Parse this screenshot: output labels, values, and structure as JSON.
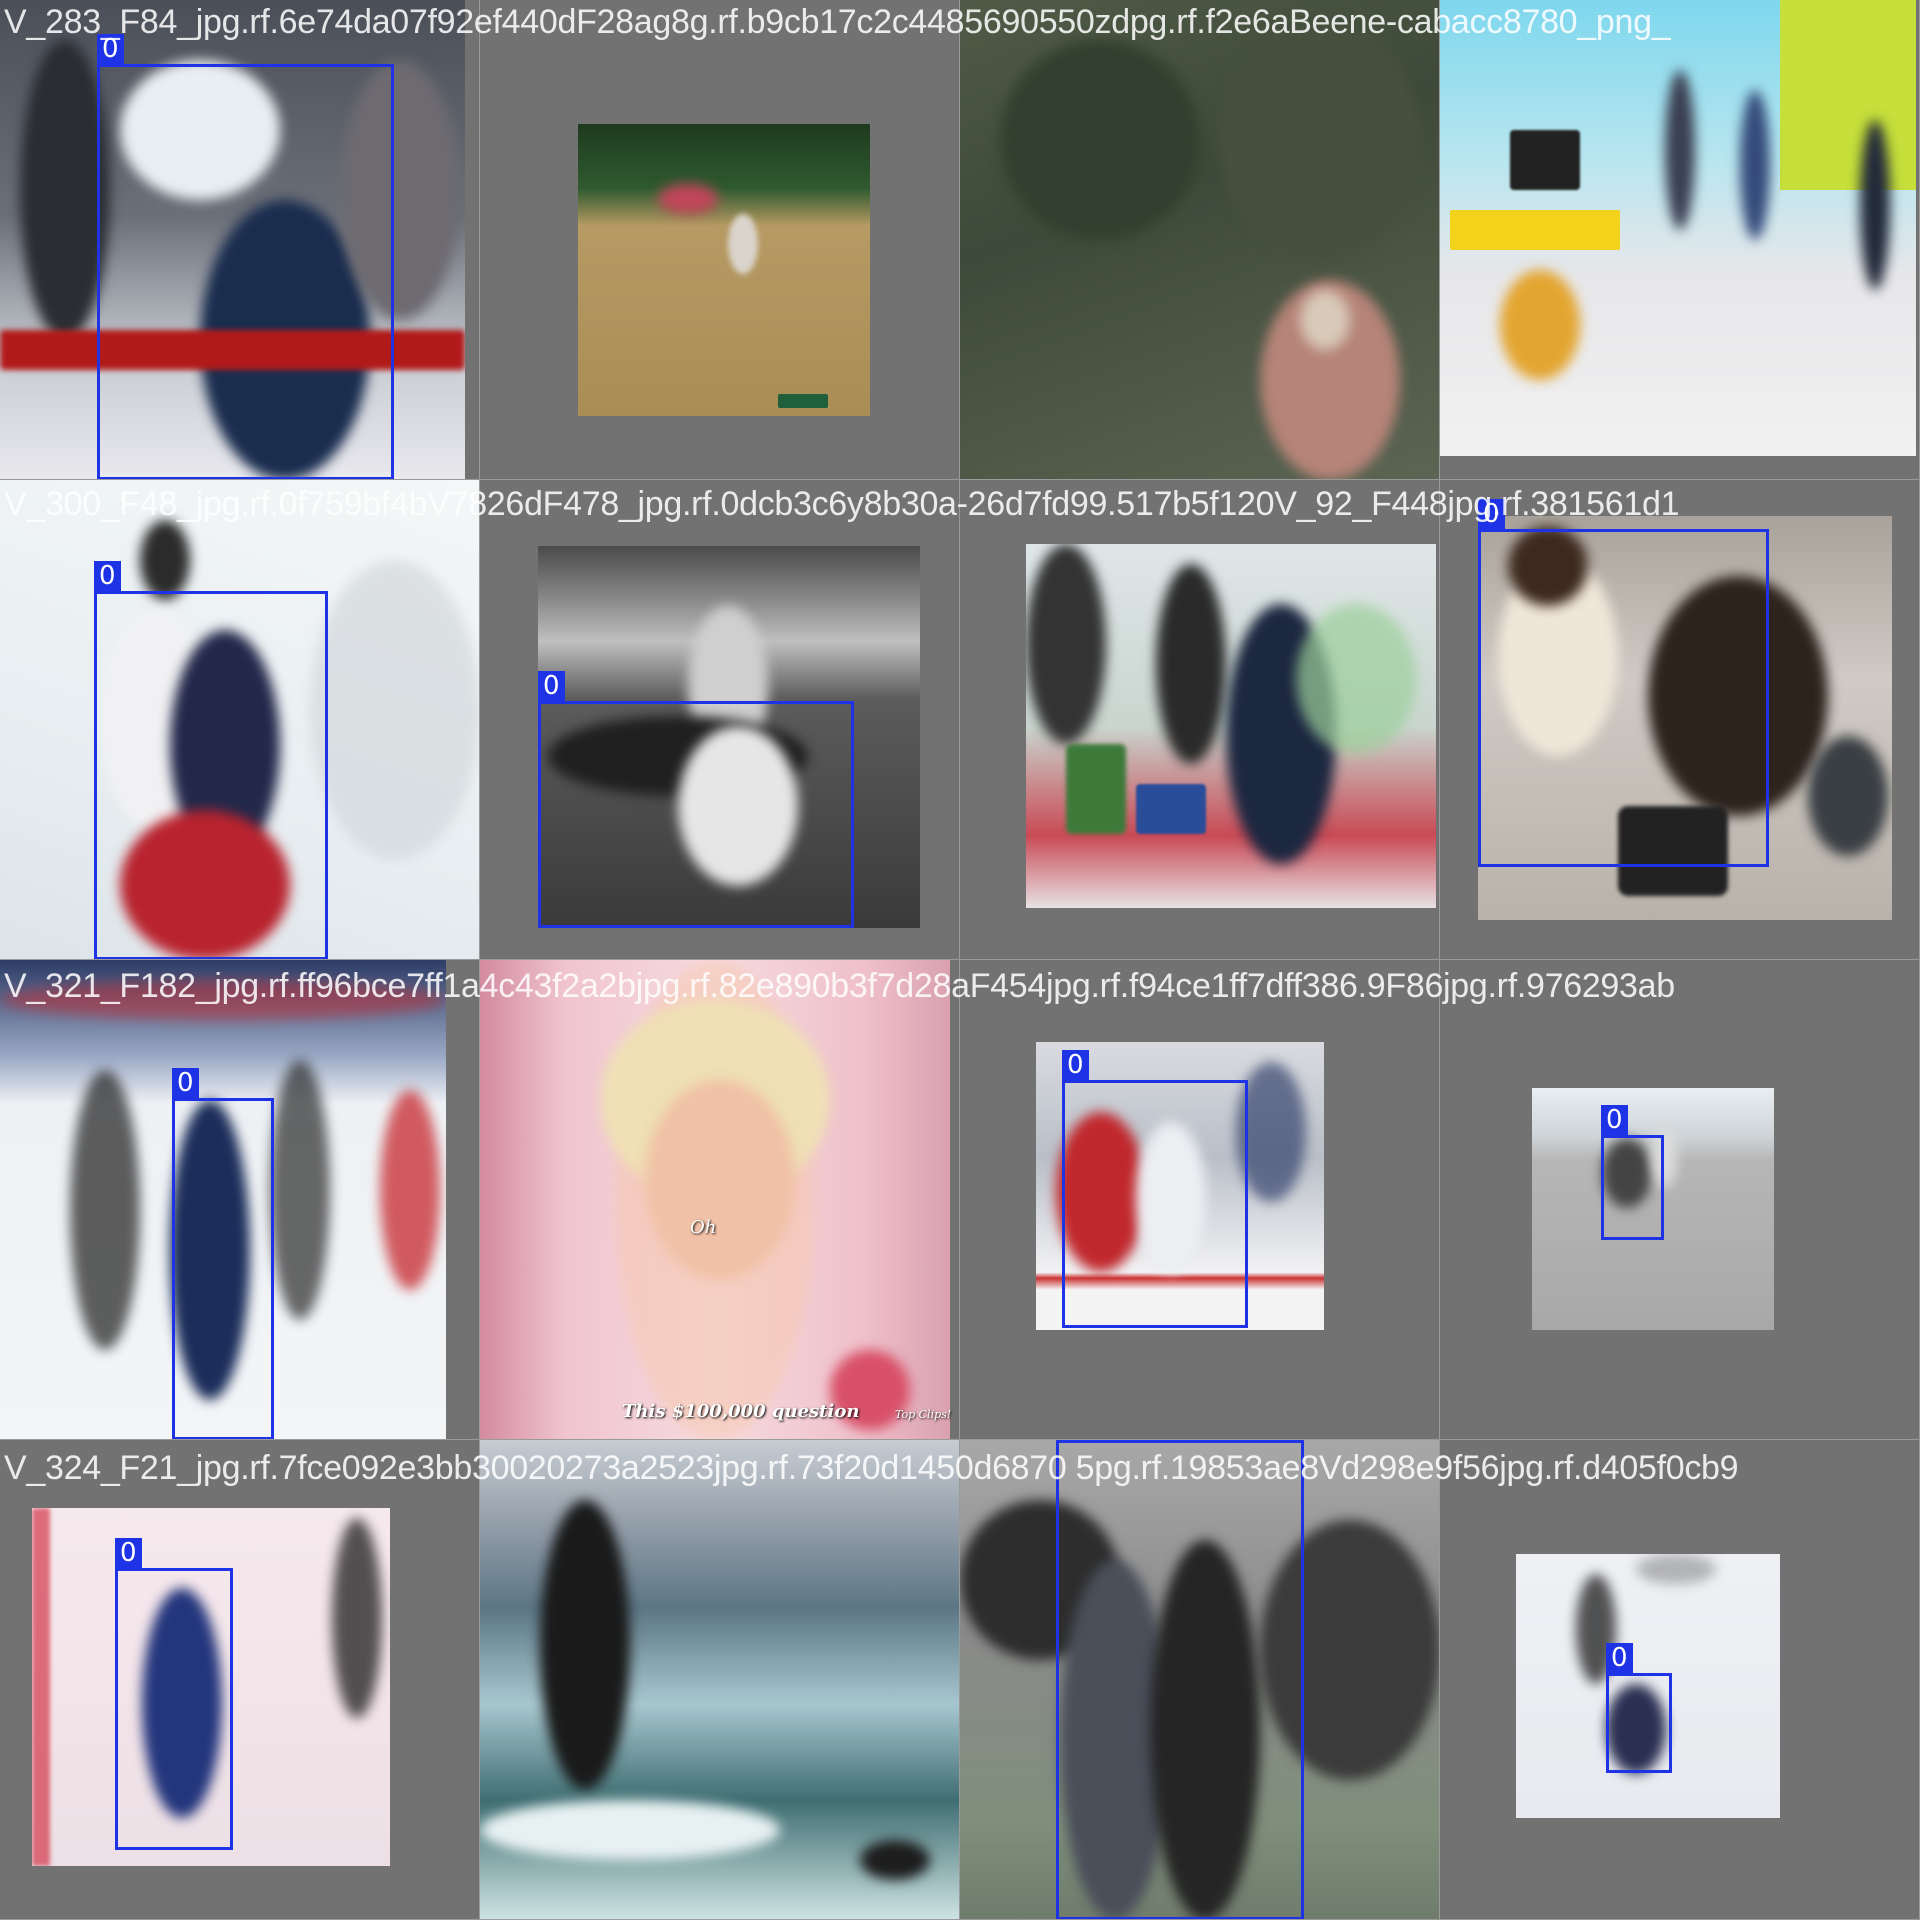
{
  "grid_title": "",
  "class_label": "0",
  "box_color": "#1f33e6",
  "tiles": [
    {
      "filename": "V_283_F84_jpg.rf.6e74da07f92ef440dF28ag8g.rf.b9cb17c2c4485690550zdpg.rf.f2e6aBeene-cabacc8780_png_",
      "has_detection": true
    },
    {
      "filename": "",
      "has_detection": false
    },
    {
      "filename": "",
      "has_detection": false
    },
    {
      "filename": "",
      "has_detection": false
    },
    {
      "filename": "V_300_F48_jpg.rf.0f759bf4bV7826dF478_jpg.rf.0dcb3c6y8b30a-26d7fd99.517b5f120V_92_F448jpg.rf.381561d1",
      "has_detection": true
    },
    {
      "filename": "",
      "has_detection": true
    },
    {
      "filename": "",
      "has_detection": false
    },
    {
      "filename": "",
      "has_detection": true
    },
    {
      "filename": "V_321_F182_jpg.rf.ff96bce7ff1a4c43f2a2bjpg.rf.82e890b3f7d28aF454jpg.rf.f94ce1ff7dff386.9F86jpg.rf.976293ab",
      "has_detection": true
    },
    {
      "filename": "",
      "has_detection": false,
      "caption_word": "Oh",
      "caption_line": "This $100,000 question",
      "badge": "Top Clips!"
    },
    {
      "filename": "",
      "has_detection": true
    },
    {
      "filename": "",
      "has_detection": true
    },
    {
      "filename": "V_324_F21_jpg.rf.7fce092e3bb30020273a2523jpg.rf.73f20d1450d6870 5pg.rf.19853ae8Vd298e9f56jpg.rf.d405f0cb9",
      "has_detection": true
    },
    {
      "filename": "",
      "has_detection": false
    },
    {
      "filename": "",
      "has_detection": true
    },
    {
      "filename": "",
      "has_detection": true
    }
  ]
}
